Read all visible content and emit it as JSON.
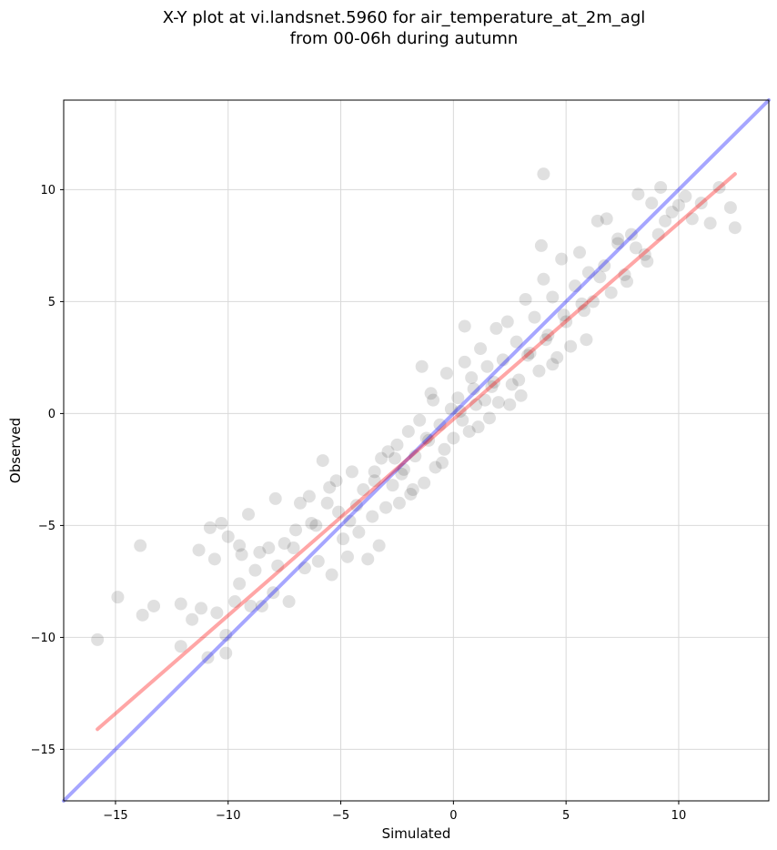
{
  "chart_data": {
    "type": "scatter",
    "title_line1": "X-Y plot at vi.landsnet.5960 for air_temperature_at_2m_agl",
    "title_line2": "from 00-06h during autumn",
    "xlabel": "Simulated",
    "ylabel": "Observed",
    "xlim": [
      -17.3,
      14.0
    ],
    "ylim": [
      -17.3,
      14.0
    ],
    "xticks": [
      -15,
      -10,
      -5,
      0,
      5,
      10
    ],
    "yticks": [
      -15,
      -10,
      -5,
      0,
      5,
      10
    ],
    "xtick_labels": [
      "−15",
      "−10",
      "−5",
      "0",
      "5",
      "10"
    ],
    "ytick_labels": [
      "−15",
      "−10",
      "−5",
      "0",
      "5",
      "10"
    ],
    "grid": true,
    "colors": {
      "points": "#000000",
      "identity_line": "#0000ff",
      "fit_line": "#ff0000",
      "grid": "#d9d9d9"
    },
    "identity_line": {
      "x": [
        -17.3,
        14.0
      ],
      "y": [
        -17.3,
        14.0
      ]
    },
    "fit_line": {
      "x": [
        -15.8,
        12.5
      ],
      "y": [
        -14.1,
        10.7
      ]
    },
    "series_points": {
      "x": [
        -15.8,
        -14.9,
        -13.9,
        -13.8,
        -13.3,
        -12.1,
        -12.1,
        -11.6,
        -11.3,
        -11.2,
        -10.9,
        -10.8,
        -10.6,
        -10.5,
        -10.3,
        -10.1,
        -10.1,
        -10.0,
        -9.7,
        -9.5,
        -9.5,
        -9.4,
        -9.1,
        -9.0,
        -8.8,
        -8.6,
        -8.2,
        -8.0,
        -7.9,
        -7.8,
        -7.5,
        -7.3,
        -7.0,
        -6.8,
        -6.6,
        -6.4,
        -6.1,
        -6.0,
        -5.8,
        -5.6,
        -5.4,
        -5.2,
        -5.1,
        -4.9,
        -4.7,
        -4.5,
        -4.3,
        -4.2,
        -4.0,
        -3.8,
        -3.6,
        -3.5,
        -3.3,
        -3.2,
        -3.0,
        -2.9,
        -2.7,
        -2.5,
        -2.4,
        -2.2,
        -2.0,
        -1.9,
        -1.7,
        -1.5,
        -1.3,
        -1.1,
        -1.0,
        -0.8,
        -0.6,
        -0.4,
        -0.3,
        -0.1,
        0.0,
        0.2,
        0.4,
        0.5,
        0.7,
        0.9,
        1.0,
        1.2,
        1.4,
        1.5,
        1.7,
        1.9,
        2.0,
        2.2,
        2.4,
        2.6,
        2.8,
        3.0,
        3.2,
        3.4,
        3.6,
        3.8,
        4.0,
        4.2,
        4.4,
        4.6,
        4.8,
        5.0,
        5.2,
        5.4,
        5.6,
        5.8,
        6.0,
        6.2,
        6.4,
        6.7,
        7.0,
        7.3,
        7.6,
        7.9,
        8.2,
        8.5,
        8.8,
        9.1,
        9.4,
        9.7,
        10.0,
        10.3,
        10.6,
        11.0,
        11.4,
        11.8,
        12.3,
        12.5,
        -3.5,
        -2.6,
        -1.8,
        -1.2,
        -0.5,
        0.3,
        1.1,
        1.8,
        2.5,
        3.3,
        4.1,
        4.9,
        5.7,
        6.5,
        7.3,
        8.1,
        -4.6,
        -5.5,
        -6.3,
        -7.1,
        -8.5,
        0.8,
        1.6,
        2.9,
        4.4,
        5.9,
        7.7,
        8.6,
        -0.9,
        -2.3,
        3.9,
        6.8,
        9.2,
        4.0,
        0.5,
        -1.4
      ],
      "y": [
        -10.1,
        -8.2,
        -5.9,
        -9.0,
        -8.6,
        -8.5,
        -10.4,
        -9.2,
        -6.1,
        -8.7,
        -10.9,
        -5.1,
        -6.5,
        -8.9,
        -4.9,
        -10.7,
        -9.9,
        -5.5,
        -8.4,
        -7.6,
        -5.9,
        -6.3,
        -4.5,
        -8.6,
        -7.0,
        -6.2,
        -6.0,
        -8.0,
        -3.8,
        -6.8,
        -5.8,
        -8.4,
        -5.2,
        -4.0,
        -6.9,
        -3.7,
        -5.0,
        -6.6,
        -2.1,
        -4.0,
        -7.2,
        -3.0,
        -4.4,
        -5.6,
        -6.4,
        -2.6,
        -4.1,
        -5.3,
        -3.4,
        -6.5,
        -4.6,
        -2.6,
        -5.9,
        -2.0,
        -4.2,
        -1.7,
        -3.2,
        -1.4,
        -4.0,
        -2.5,
        -0.8,
        -3.6,
        -1.9,
        -0.3,
        -3.1,
        -1.2,
        0.9,
        -2.4,
        -0.5,
        -1.6,
        1.8,
        0.2,
        -1.1,
        0.7,
        -0.3,
        2.3,
        -0.8,
        1.1,
        0.4,
        2.9,
        0.6,
        2.1,
        1.2,
        3.8,
        0.5,
        2.4,
        4.1,
        1.3,
        3.2,
        0.8,
        5.1,
        2.7,
        4.3,
        1.9,
        6.0,
        3.5,
        5.2,
        2.5,
        6.9,
        4.1,
        3.0,
        5.7,
        7.2,
        4.6,
        6.3,
        5.0,
        8.6,
        6.6,
        5.4,
        7.6,
        6.2,
        8.0,
        9.8,
        7.1,
        9.4,
        8.0,
        8.6,
        9.0,
        9.3,
        9.7,
        8.7,
        9.4,
        8.5,
        10.1,
        9.2,
        8.3,
        -3.0,
        -2.0,
        -3.4,
        -1.1,
        -2.2,
        0.1,
        -0.6,
        1.4,
        0.4,
        2.6,
        3.3,
        4.4,
        4.9,
        6.1,
        7.8,
        7.4,
        -4.8,
        -3.3,
        -4.9,
        -6.0,
        -8.6,
        1.6,
        -0.2,
        1.5,
        2.2,
        3.3,
        5.9,
        6.8,
        0.6,
        -2.7,
        7.5,
        8.7,
        10.1,
        10.7,
        3.9,
        2.1
      ]
    }
  }
}
